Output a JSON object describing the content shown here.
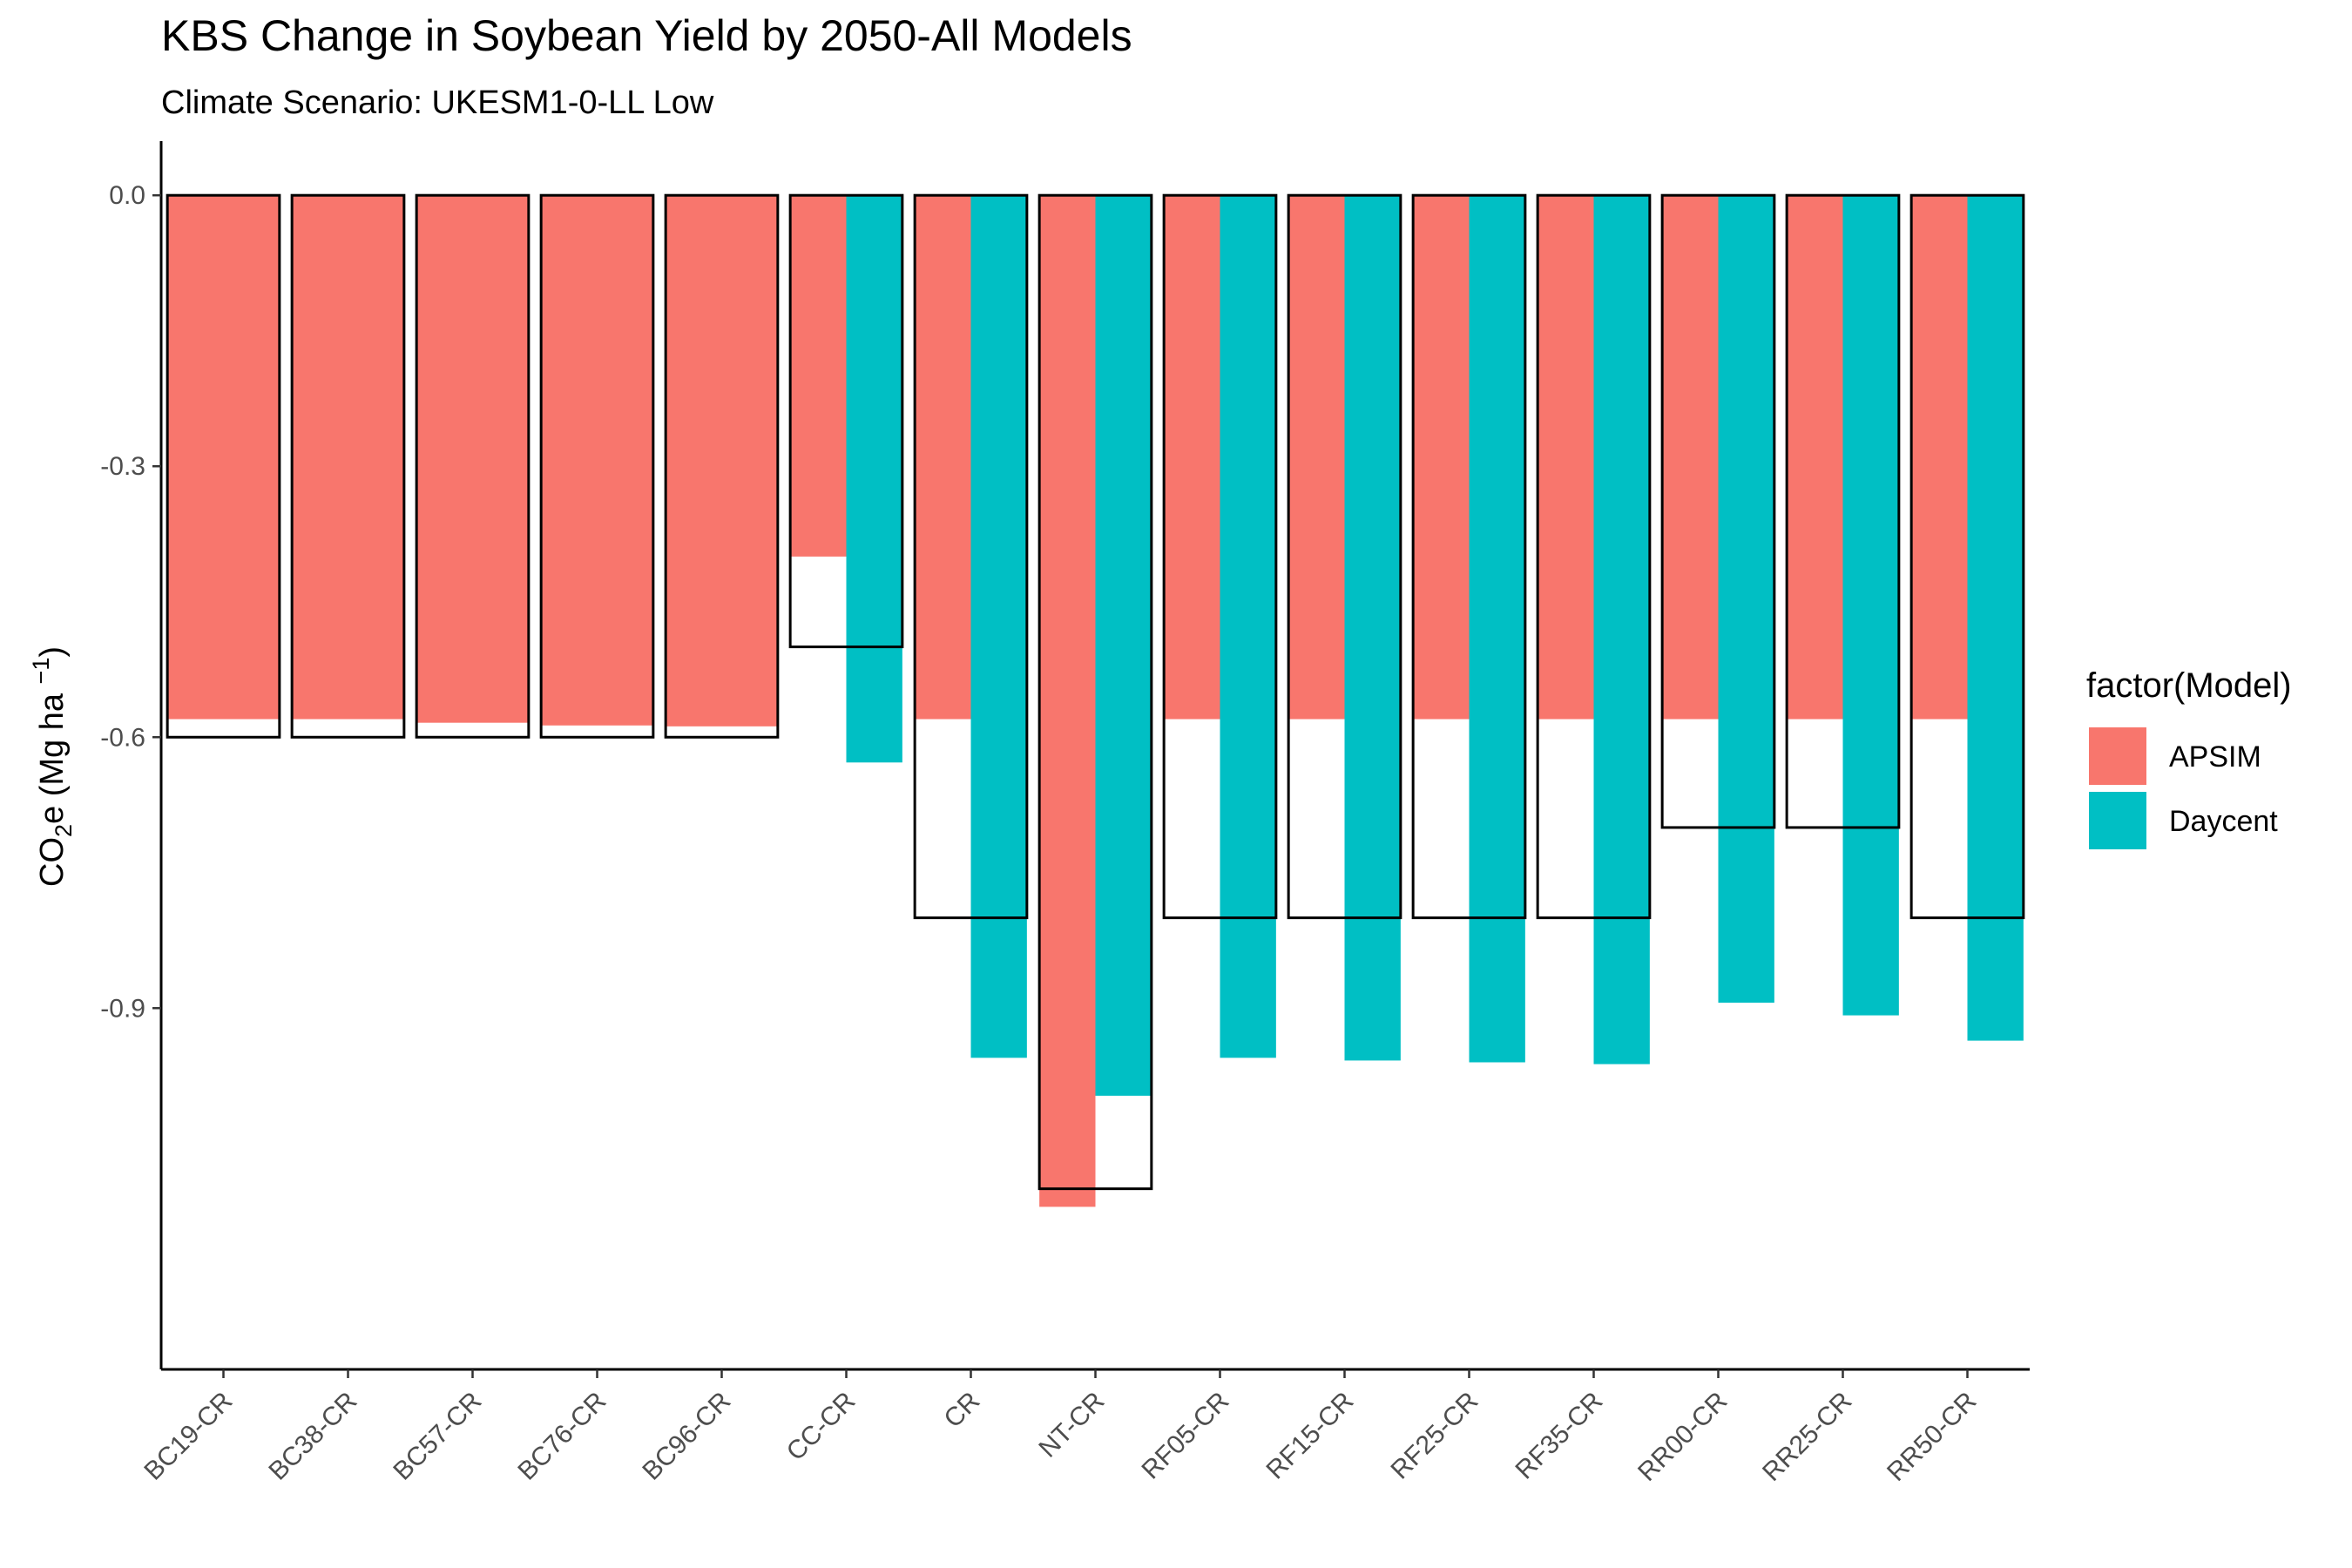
{
  "chart_data": {
    "type": "bar",
    "title": "KBS Change in Soybean Yield by 2050-All Models",
    "subtitle": "Climate Scenario: UKESM1-0-LL Low",
    "xlabel": "",
    "ylabel": "CO2e (Mg ha −1)",
    "ylabel_parts": {
      "base": "CO",
      "sub": "2",
      "after_sub": "e (Mg ha ",
      "sup": "−1",
      "close": ")"
    },
    "ylim": [
      -1.3,
      0.06
    ],
    "yticks": [
      0.0,
      -0.3,
      -0.6,
      -0.9
    ],
    "ytick_labels": [
      "0.0",
      "-0.3",
      "-0.6",
      "-0.9"
    ],
    "grid": false,
    "legend": {
      "title": "factor(Model)",
      "position": "right"
    },
    "categories": [
      "BC19-CR",
      "BC38-CR",
      "BC57-CR",
      "BC76-CR",
      "BC96-CR",
      "CC-CR",
      "CR",
      "NT-CR",
      "RF05-CR",
      "RF15-CR",
      "RF25-CR",
      "RF35-CR",
      "RR00-CR",
      "RR25-CR",
      "RR50-CR"
    ],
    "series": [
      {
        "name": "APSIM",
        "color": "#F8766D",
        "values": [
          -0.58,
          -0.58,
          -0.584,
          -0.587,
          -0.588,
          -0.4,
          -0.58,
          -1.12,
          -0.58,
          -0.58,
          -0.58,
          -0.58,
          -0.58,
          -0.58,
          -0.58
        ]
      },
      {
        "name": "Daycent",
        "color": "#00BFC4",
        "values": [
          null,
          null,
          null,
          null,
          null,
          -0.628,
          -0.955,
          -0.997,
          -0.955,
          -0.958,
          -0.96,
          -0.962,
          -0.894,
          -0.908,
          -0.936
        ]
      }
    ],
    "observed_outline": {
      "values": [
        -0.6,
        -0.6,
        -0.6,
        -0.6,
        -0.6,
        -0.5,
        -0.8,
        -1.1,
        -0.8,
        -0.8,
        -0.8,
        -0.8,
        -0.7,
        -0.7,
        -0.8
      ],
      "stroke": "#000000"
    }
  }
}
